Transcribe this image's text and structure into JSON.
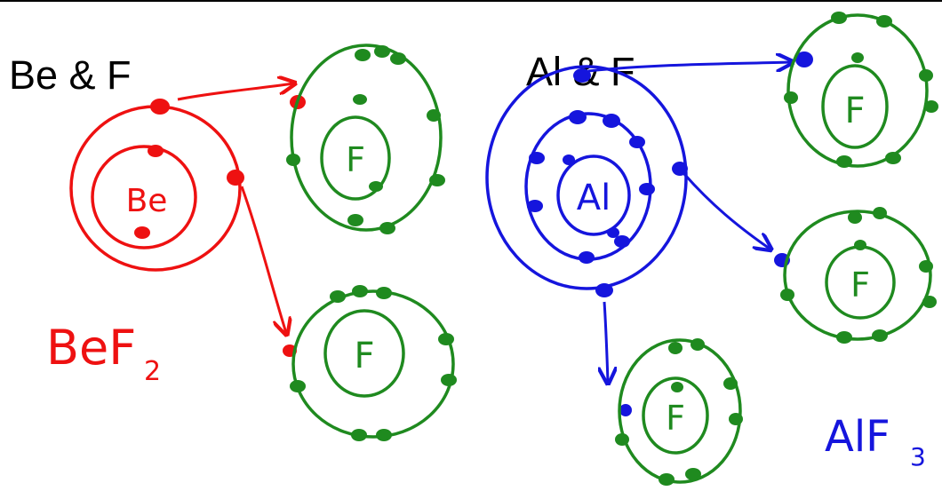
{
  "headings": {
    "left": "Be & F",
    "right": "Al & F"
  },
  "atoms": {
    "beryllium": "Be",
    "aluminum": "Al",
    "fluorine": "F"
  },
  "formulas": {
    "left_main": "BeF",
    "left_sub": "2",
    "right_main": "AlF",
    "right_sub": "3"
  },
  "colors": {
    "beryllium": "#ee1111",
    "aluminum": "#1515dd",
    "fluorine": "#1f8a1f",
    "heading": "#000000"
  }
}
